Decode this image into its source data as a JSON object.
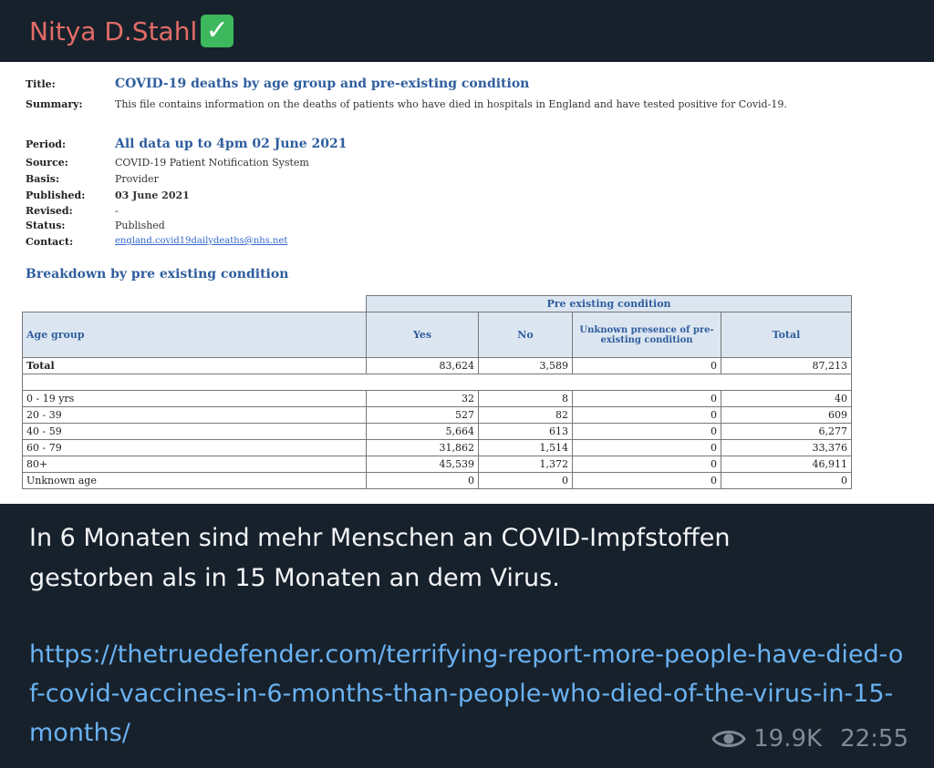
{
  "post": {
    "author": "Nitya D.Stahl",
    "verified_icon": "check-mark-emoji",
    "caption_line1": "In 6 Monaten sind mehr Menschen an COVID-Impfstoffen",
    "caption_line2": "gestorben als in 15 Monaten an dem Virus.",
    "link": "https://thetruedefender.com/terrifying-report-more-people-have-died-of-covid-vaccines-in-6-months-than-people-who-died-of-the-virus-in-15-months/",
    "views": "19.9K",
    "time": "22:55"
  },
  "document": {
    "title_label": "Title:",
    "title": "COVID-19 deaths by age group and pre-existing condition",
    "summary_label": "Summary:",
    "summary": "This file contains information on the deaths of patients who have died in hospitals in England and have tested positive for Covid-19.",
    "period_label": "Period:",
    "period": "All data up to 4pm 02 June 2021",
    "source_label": "Source:",
    "source": "COVID-19 Patient Notification System",
    "basis_label": "Basis:",
    "basis": "Provider",
    "published_label": "Published:",
    "published": "03 June 2021",
    "revised_label": "Revised:",
    "revised": "-",
    "status_label": "Status:",
    "status": "Published",
    "contact_label": "Contact:",
    "contact": "england.covid19dailydeaths@nhs.net",
    "section_title": "Breakdown by pre existing condition",
    "table": {
      "group_header": "Pre existing condition",
      "col_age": "Age group",
      "col_yes": "Yes",
      "col_no": "No",
      "col_unknown": "Unknown presence of pre-existing condition",
      "col_total": "Total",
      "total_row": {
        "age": "Total",
        "yes": "83,624",
        "no": "3,589",
        "unknown": "0",
        "total": "87,213"
      },
      "rows": [
        {
          "age": "0 - 19 yrs",
          "yes": "32",
          "no": "8",
          "unknown": "0",
          "total": "40"
        },
        {
          "age": "20 - 39",
          "yes": "527",
          "no": "82",
          "unknown": "0",
          "total": "609"
        },
        {
          "age": "40 - 59",
          "yes": "5,664",
          "no": "613",
          "unknown": "0",
          "total": "6,277"
        },
        {
          "age": "60 - 79",
          "yes": "31,862",
          "no": "1,514",
          "unknown": "0",
          "total": "33,376"
        },
        {
          "age": "80+",
          "yes": "45,539",
          "no": "1,372",
          "unknown": "0",
          "total": "46,911"
        },
        {
          "age": "Unknown age",
          "yes": "0",
          "no": "0",
          "unknown": "0",
          "total": "0"
        }
      ]
    }
  }
}
